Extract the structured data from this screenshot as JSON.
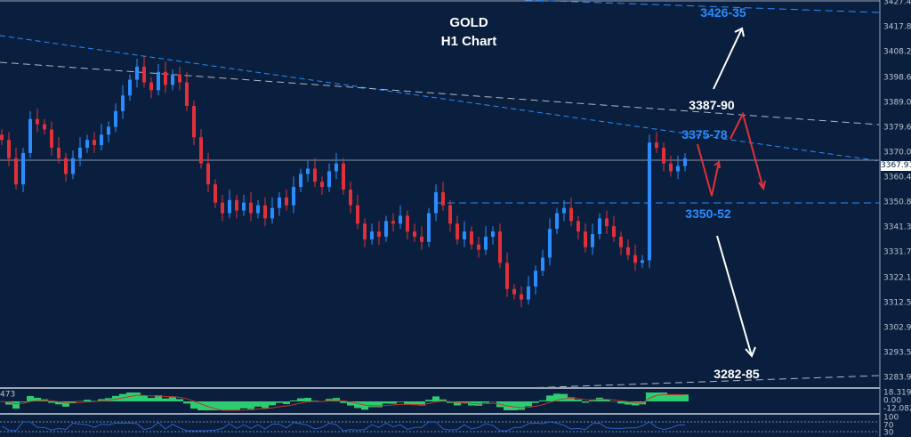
{
  "header": {
    "symbol": "GOLD",
    "timeframe": "H1 Chart"
  },
  "annotations": {
    "target_top": "3426-35",
    "resistance_upper": "3387-90",
    "resistance": "3375-78",
    "support": "3350-52",
    "target_bottom": "3282-85"
  },
  "colors": {
    "background": "#0a1f3d",
    "bull": "#2b8cff",
    "bear": "#e0303a",
    "macd_hist": "#2ecc71",
    "macd_signal": "#c0392b",
    "rsi": "#2f5fc4"
  },
  "indicator": {
    "left_label": "473",
    "macd_max": "18.319",
    "macd_zero": "0.00",
    "macd_min": "-12.082",
    "rsi_100": "100",
    "rsi_70": "70",
    "rsi_30": "30"
  },
  "chart_data": {
    "type": "candlestick",
    "title": "GOLD H1 Chart",
    "ylim": [
      3283.9,
      3427.45
    ],
    "y_ticks": [
      "3427.45",
      "3417.85",
      "3408.25",
      "3398.65",
      "3389.05",
      "3379.60",
      "3370.00",
      "3360.40",
      "3350.80",
      "3341.35",
      "3331.75",
      "3322.15",
      "3312.55",
      "3302.95",
      "3293.50",
      "3283.90"
    ],
    "current_price": "3367.91",
    "closes": [
      3375,
      3368,
      3358,
      3370,
      3383,
      3381,
      3379,
      3372,
      3368,
      3362,
      3368,
      3372,
      3375,
      3373,
      3377,
      3380,
      3386,
      3392,
      3398,
      3403,
      3397,
      3394,
      3401,
      3396,
      3400,
      3397,
      3388,
      3376,
      3366,
      3358,
      3351,
      3347,
      3352,
      3348,
      3351,
      3347,
      3350,
      3345,
      3349,
      3353,
      3350,
      3357,
      3362,
      3364,
      3359,
      3357,
      3363,
      3366,
      3356,
      3350,
      3343,
      3337,
      3340,
      3338,
      3344,
      3343,
      3346,
      3340,
      3338,
      3336,
      3347,
      3355,
      3350,
      3343,
      3337,
      3340,
      3335,
      3333,
      3338,
      3340,
      3328,
      3318,
      3316,
      3314,
      3319,
      3325,
      3330,
      3341,
      3347,
      3349,
      3344,
      3340,
      3334,
      3339,
      3345,
      3342,
      3338,
      3334,
      3331,
      3328,
      3329,
      3374,
      3372,
      3366,
      3363,
      3365,
      3367.91
    ],
    "grid": false
  }
}
